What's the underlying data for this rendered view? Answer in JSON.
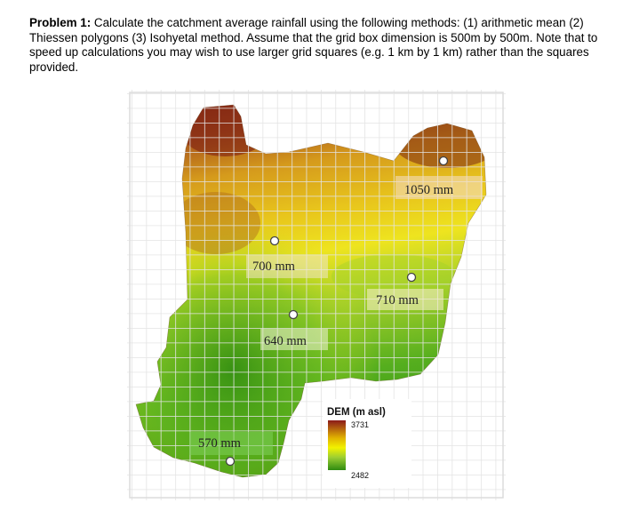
{
  "problem": {
    "heading": "Problem 1:",
    "text": " Calculate the catchment average rainfall using the following methods: (1) arithmetic mean (2) Thiessen polygons (3) Isohyetal method. Assume that the grid box dimension is 500m by 500m. Note that to speed up calculations you may wish to use larger grid squares (e.g. 1 km by 1 km) rather than the squares provided."
  },
  "map": {
    "gauges": [
      {
        "label": "1050 mm"
      },
      {
        "label": "700 mm"
      },
      {
        "label": "710 mm"
      },
      {
        "label": "640 mm"
      },
      {
        "label": "570 mm"
      }
    ],
    "legend": {
      "title": "DEM (m asl)",
      "max": "3731",
      "min": "2482",
      "colors": [
        "#8b1a1a",
        "#e0b100",
        "#f2f200",
        "#9acd32",
        "#2e8b10"
      ]
    }
  }
}
